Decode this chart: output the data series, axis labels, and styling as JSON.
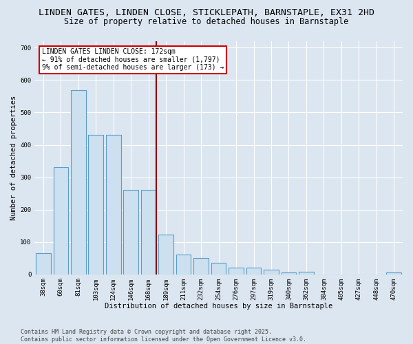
{
  "title_line1": "LINDEN GATES, LINDEN CLOSE, STICKLEPATH, BARNSTAPLE, EX31 2HD",
  "title_line2": "Size of property relative to detached houses in Barnstaple",
  "xlabel": "Distribution of detached houses by size in Barnstaple",
  "ylabel": "Number of detached properties",
  "categories": [
    "38sqm",
    "60sqm",
    "81sqm",
    "103sqm",
    "124sqm",
    "146sqm",
    "168sqm",
    "189sqm",
    "211sqm",
    "232sqm",
    "254sqm",
    "276sqm",
    "297sqm",
    "319sqm",
    "340sqm",
    "362sqm",
    "384sqm",
    "405sqm",
    "427sqm",
    "448sqm",
    "470sqm"
  ],
  "values": [
    65,
    330,
    570,
    430,
    430,
    260,
    260,
    122,
    60,
    50,
    35,
    20,
    20,
    15,
    5,
    8,
    0,
    0,
    0,
    0,
    5
  ],
  "bar_color": "#cce0f0",
  "bar_edge_color": "#5b9dc9",
  "vline_x_index": 6,
  "vline_color": "#8b0000",
  "annotation_title": "LINDEN GATES LINDEN CLOSE: 172sqm",
  "annotation_line1": "← 91% of detached houses are smaller (1,797)",
  "annotation_line2": "9% of semi-detached houses are larger (173) →",
  "annotation_box_facecolor": "#ffffff",
  "annotation_box_edgecolor": "#cc0000",
  "ylim": [
    0,
    720
  ],
  "yticks": [
    0,
    100,
    200,
    300,
    400,
    500,
    600,
    700
  ],
  "background_color": "#dce6f0",
  "plot_background": "#dce6f0",
  "footnote_line1": "Contains HM Land Registry data © Crown copyright and database right 2025.",
  "footnote_line2": "Contains public sector information licensed under the Open Government Licence v3.0.",
  "title_fontsize": 9.5,
  "subtitle_fontsize": 8.5,
  "axis_label_fontsize": 7.5,
  "tick_fontsize": 6.5,
  "annotation_fontsize": 7.0,
  "footnote_fontsize": 6.0
}
